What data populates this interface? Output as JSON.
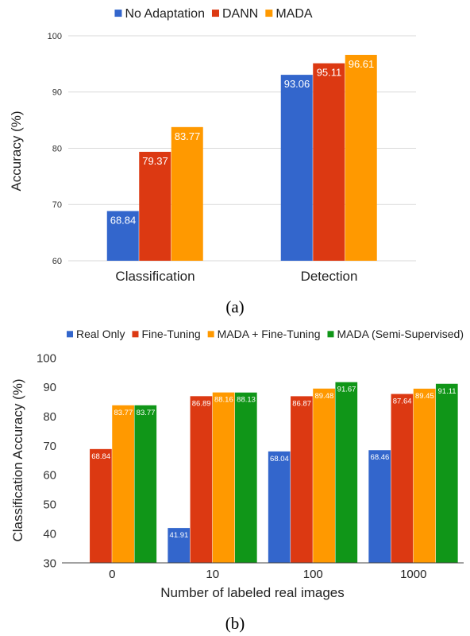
{
  "chart_data": [
    {
      "type": "bar",
      "categories": [
        "Classification",
        "Detection"
      ],
      "series": [
        {
          "name": "No Adaptation",
          "color": "#3366cc",
          "values": [
            68.84,
            93.06
          ]
        },
        {
          "name": "DANN",
          "color": "#dc3912",
          "values": [
            79.37,
            95.11
          ]
        },
        {
          "name": "MADA",
          "color": "#ff9900",
          "values": [
            83.77,
            96.61
          ]
        }
      ],
      "ylabel": "Accuracy (%)",
      "xlabel": "",
      "ylim": [
        60,
        100
      ],
      "yticks": [
        60,
        70,
        80,
        90,
        100
      ],
      "grid": true,
      "legend": "top-center",
      "caption": "(a)"
    },
    {
      "type": "bar",
      "categories": [
        "0",
        "10",
        "100",
        "1000"
      ],
      "series": [
        {
          "name": "Real Only",
          "color": "#3366cc",
          "values": [
            null,
            41.91,
            68.04,
            68.46
          ]
        },
        {
          "name": "Fine-Tuning",
          "color": "#dc3912",
          "values": [
            68.84,
            86.89,
            86.87,
            87.64
          ]
        },
        {
          "name": "MADA + Fine-Tuning",
          "color": "#ff9900",
          "values": [
            83.77,
            88.16,
            89.48,
            89.45
          ]
        },
        {
          "name": "MADA (Semi-Supervised)",
          "color": "#109618",
          "values": [
            83.77,
            88.13,
            91.67,
            91.11
          ]
        }
      ],
      "ylabel": "Classification Accuracy (%)",
      "xlabel": "Number of labeled real images",
      "ylim": [
        30,
        100
      ],
      "yticks": [
        30,
        40,
        50,
        60,
        70,
        80,
        90,
        100
      ],
      "grid": false,
      "legend": "top-center",
      "caption": "(b)"
    }
  ]
}
